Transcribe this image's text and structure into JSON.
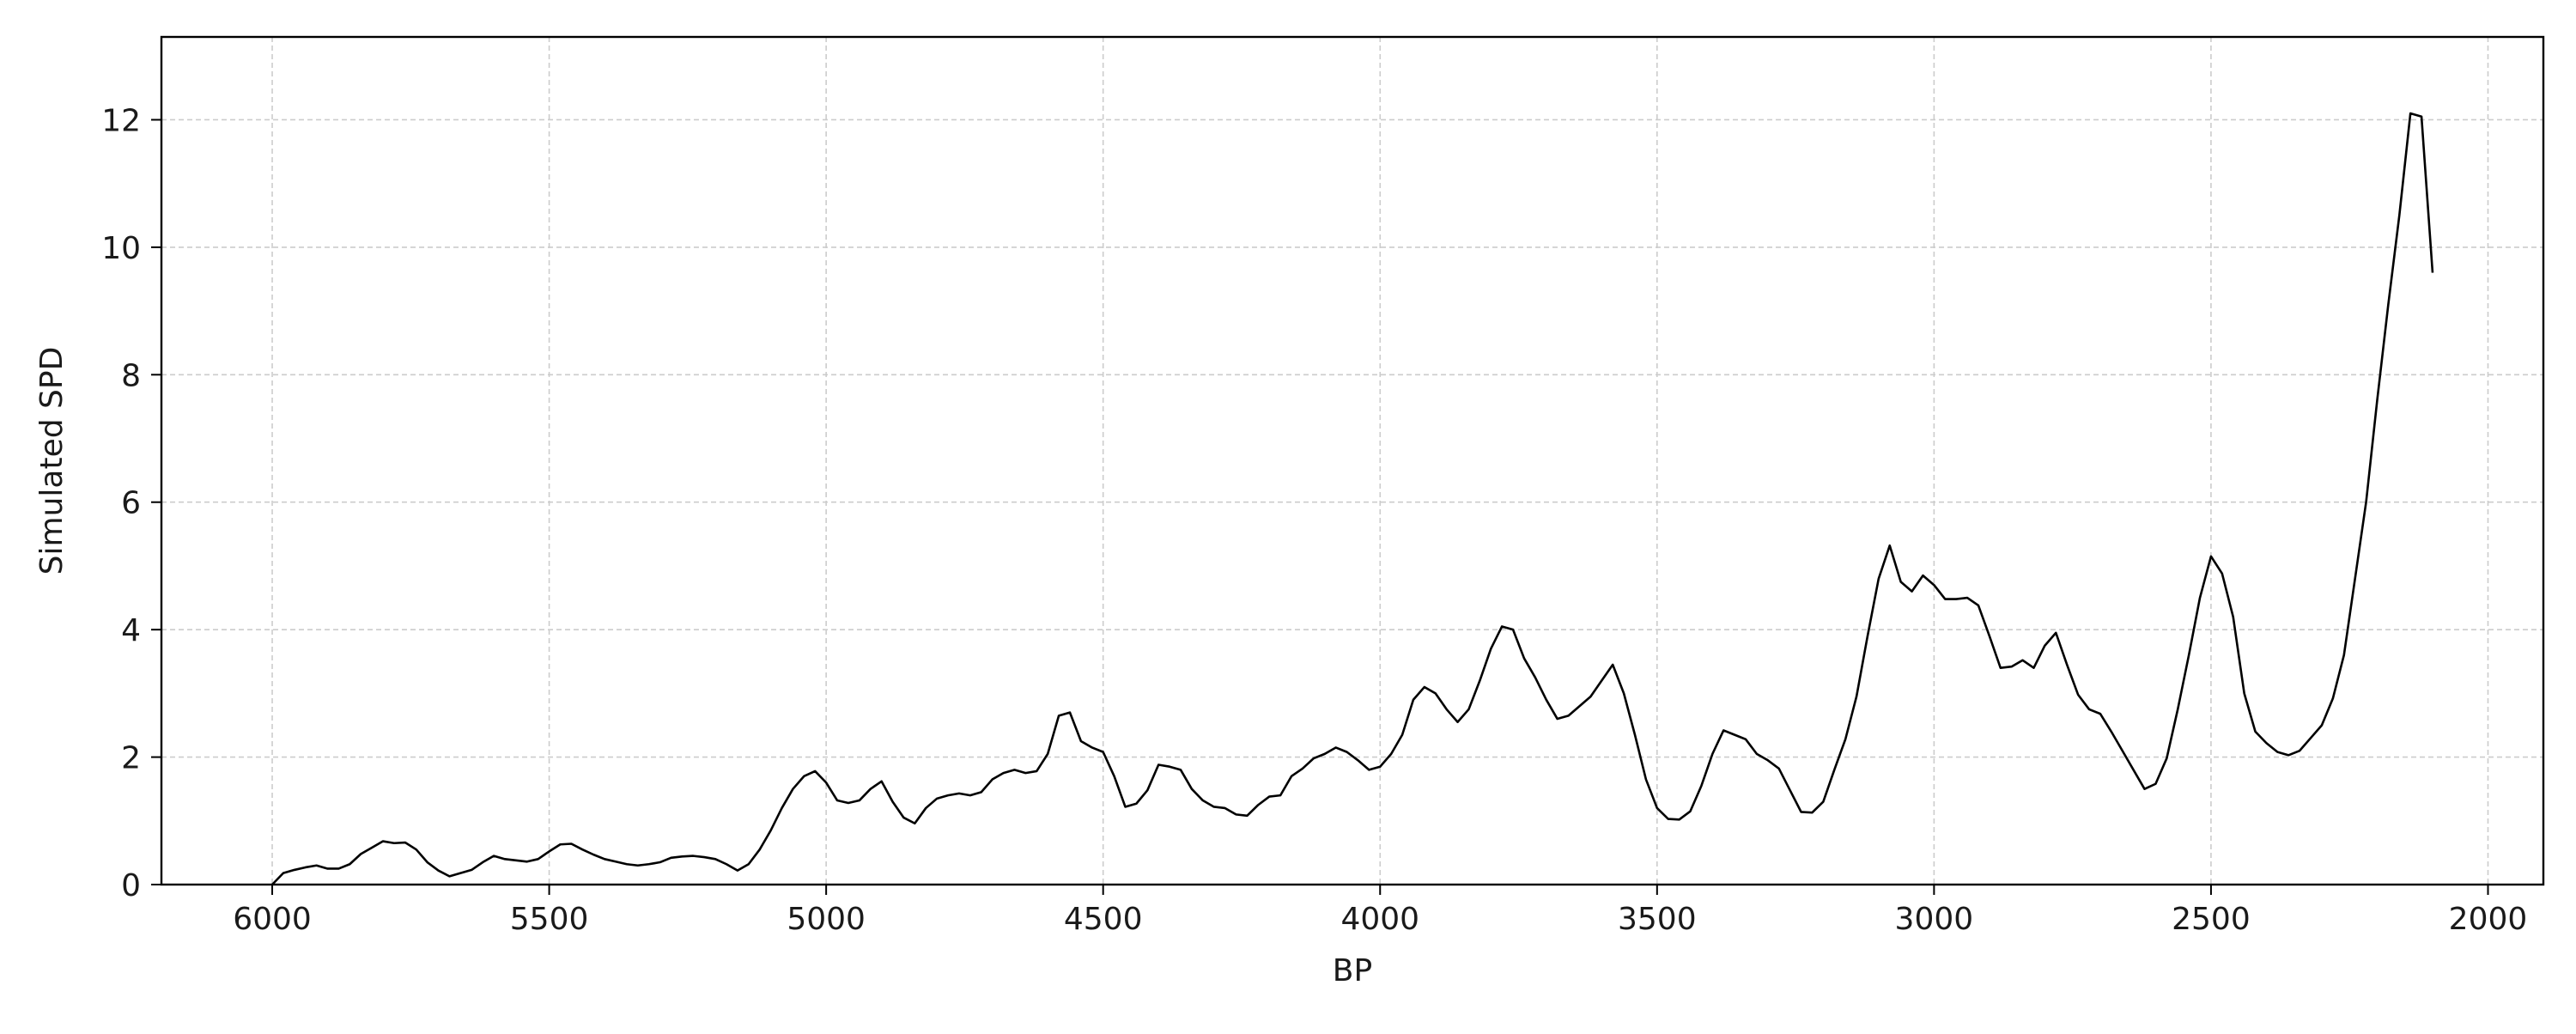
{
  "chart_data": {
    "type": "line",
    "title": "",
    "xlabel": "BP",
    "ylabel": "Simulated SPD",
    "xlim": [
      6200,
      1900
    ],
    "ylim": [
      0,
      13.3
    ],
    "x_reversed": true,
    "xticks": [
      6000,
      5500,
      5000,
      4500,
      4000,
      3500,
      3000,
      2500,
      2000
    ],
    "yticks": [
      0,
      2,
      4,
      6,
      8,
      10,
      12
    ],
    "grid": true,
    "line_color": "#000000",
    "grid_color": "#cccccc",
    "series": [
      {
        "x": [
          6000,
          5980,
          5960,
          5940,
          5920,
          5900,
          5880,
          5860,
          5840,
          5820,
          5800,
          5780,
          5760,
          5740,
          5720,
          5700,
          5680,
          5660,
          5640,
          5620,
          5600,
          5580,
          5560,
          5540,
          5520,
          5500,
          5480,
          5460,
          5440,
          5420,
          5400,
          5380,
          5360,
          5340,
          5320,
          5300,
          5280,
          5260,
          5240,
          5220,
          5200,
          5180,
          5160,
          5140,
          5120,
          5100,
          5080,
          5060,
          5040,
          5020,
          5000,
          4980,
          4960,
          4940,
          4920,
          4900,
          4880,
          4860,
          4840,
          4820,
          4800,
          4780,
          4760,
          4740,
          4720,
          4700,
          4680,
          4660,
          4640,
          4620,
          4600,
          4580,
          4560,
          4540,
          4520,
          4500,
          4480,
          4460,
          4440,
          4420,
          4400,
          4380,
          4360,
          4340,
          4320,
          4300,
          4280,
          4260,
          4240,
          4220,
          4200,
          4180,
          4160,
          4140,
          4120,
          4100,
          4080,
          4060,
          4040,
          4020,
          4000,
          3980,
          3960,
          3940,
          3920,
          3900,
          3880,
          3860,
          3840,
          3820,
          3800,
          3780,
          3760,
          3740,
          3720,
          3700,
          3680,
          3660,
          3640,
          3620,
          3600,
          3580,
          3560,
          3540,
          3520,
          3500,
          3480,
          3460,
          3440,
          3420,
          3400,
          3380,
          3360,
          3340,
          3320,
          3300,
          3280,
          3260,
          3240,
          3220,
          3200,
          3180,
          3160,
          3140,
          3120,
          3100,
          3080,
          3060,
          3040,
          3020,
          3000,
          2980,
          2960,
          2940,
          2920,
          2900,
          2880,
          2860,
          2840,
          2820,
          2800,
          2780,
          2760,
          2740,
          2720,
          2700,
          2680,
          2660,
          2640,
          2620,
          2600,
          2580,
          2560,
          2540,
          2520,
          2500,
          2480,
          2460,
          2440,
          2420,
          2400,
          2380,
          2360,
          2340,
          2320,
          2300,
          2280,
          2260,
          2240,
          2220,
          2200,
          2180,
          2160,
          2140,
          2120,
          2100
        ],
        "values": [
          0.0,
          0.18,
          0.23,
          0.27,
          0.3,
          0.25,
          0.25,
          0.32,
          0.48,
          0.58,
          0.68,
          0.65,
          0.66,
          0.55,
          0.35,
          0.22,
          0.13,
          0.18,
          0.23,
          0.35,
          0.45,
          0.4,
          0.38,
          0.36,
          0.4,
          0.52,
          0.63,
          0.64,
          0.55,
          0.47,
          0.4,
          0.36,
          0.32,
          0.3,
          0.32,
          0.35,
          0.42,
          0.44,
          0.45,
          0.43,
          0.4,
          0.32,
          0.22,
          0.32,
          0.55,
          0.85,
          1.2,
          1.5,
          1.7,
          1.78,
          1.6,
          1.32,
          1.28,
          1.32,
          1.5,
          1.62,
          1.3,
          1.05,
          0.96,
          1.2,
          1.35,
          1.4,
          1.43,
          1.4,
          1.45,
          1.65,
          1.75,
          1.8,
          1.75,
          1.78,
          2.05,
          2.65,
          2.7,
          2.25,
          2.15,
          2.08,
          1.7,
          1.22,
          1.27,
          1.48,
          1.88,
          1.85,
          1.8,
          1.5,
          1.32,
          1.22,
          1.2,
          1.1,
          1.08,
          1.25,
          1.38,
          1.4,
          1.7,
          1.82,
          1.98,
          2.05,
          2.15,
          2.08,
          1.95,
          1.8,
          1.85,
          2.05,
          2.35,
          2.9,
          3.1,
          3.0,
          2.75,
          2.55,
          2.75,
          3.2,
          3.7,
          4.05,
          4.0,
          3.55,
          3.25,
          2.9,
          2.6,
          2.65,
          2.8,
          2.95,
          3.2,
          3.45,
          3.0,
          2.35,
          1.65,
          1.2,
          1.03,
          1.02,
          1.15,
          1.55,
          2.05,
          2.42,
          2.35,
          2.28,
          2.05,
          1.95,
          1.82,
          1.48,
          1.14,
          1.13,
          1.3,
          1.8,
          2.28,
          2.95,
          3.9,
          4.8,
          5.32,
          4.75,
          4.6,
          4.85,
          4.7,
          4.48,
          4.48,
          4.5,
          4.38,
          3.9,
          3.4,
          3.42,
          3.52,
          3.4,
          3.75,
          3.95,
          3.45,
          2.98,
          2.75,
          2.68,
          2.4,
          2.1,
          1.8,
          1.5,
          1.58,
          1.98,
          2.75,
          3.6,
          4.5,
          5.15,
          4.88,
          4.2,
          3.0,
          2.4,
          2.22,
          2.08,
          2.03,
          2.1,
          2.3,
          2.5,
          2.92,
          3.6,
          4.8,
          6.0,
          7.6,
          9.1,
          10.5,
          12.1,
          12.05,
          9.6
        ]
      }
    ]
  }
}
